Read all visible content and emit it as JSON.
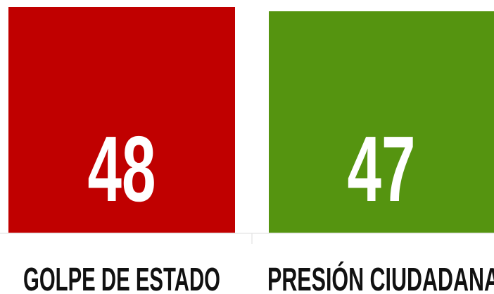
{
  "cards": [
    {
      "value": 48,
      "label": "GOLPE DE ESTADO"
    },
    {
      "value": 47,
      "label": "PRESIÓN CIUDADANA"
    }
  ]
}
